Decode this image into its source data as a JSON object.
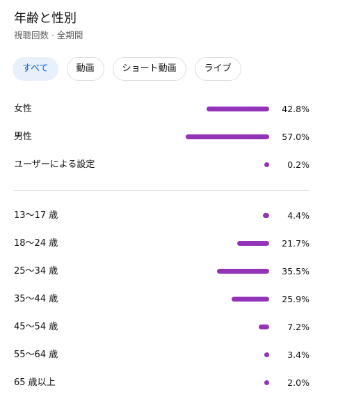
{
  "header": {
    "title": "年齢と性別",
    "subtitle": "視聴回数 · 全期間"
  },
  "chips": [
    {
      "label": "すべて",
      "selected": true
    },
    {
      "label": "動画",
      "selected": false
    },
    {
      "label": "ショート動画",
      "selected": false
    },
    {
      "label": "ライブ",
      "selected": false
    }
  ],
  "bar_color": "#9334b8",
  "groups": [
    {
      "rows": [
        {
          "label": "女性",
          "value": 42.8,
          "value_label": "42.8%"
        },
        {
          "label": "男性",
          "value": 57.0,
          "value_label": "57.0%"
        },
        {
          "label": "ユーザーによる設定",
          "value": 0.2,
          "value_label": "0.2%"
        }
      ]
    },
    {
      "rows": [
        {
          "label": "13〜17 歳",
          "value": 4.4,
          "value_label": "4.4%"
        },
        {
          "label": "18〜24 歳",
          "value": 21.7,
          "value_label": "21.7%"
        },
        {
          "label": "25〜34 歳",
          "value": 35.5,
          "value_label": "35.5%"
        },
        {
          "label": "35〜44 歳",
          "value": 25.9,
          "value_label": "25.9%"
        },
        {
          "label": "45〜54 歳",
          "value": 7.2,
          "value_label": "7.2%"
        },
        {
          "label": "55〜64 歳",
          "value": 3.4,
          "value_label": "3.4%"
        },
        {
          "label": "65 歳以上",
          "value": 2.0,
          "value_label": "2.0%"
        }
      ]
    }
  ]
}
